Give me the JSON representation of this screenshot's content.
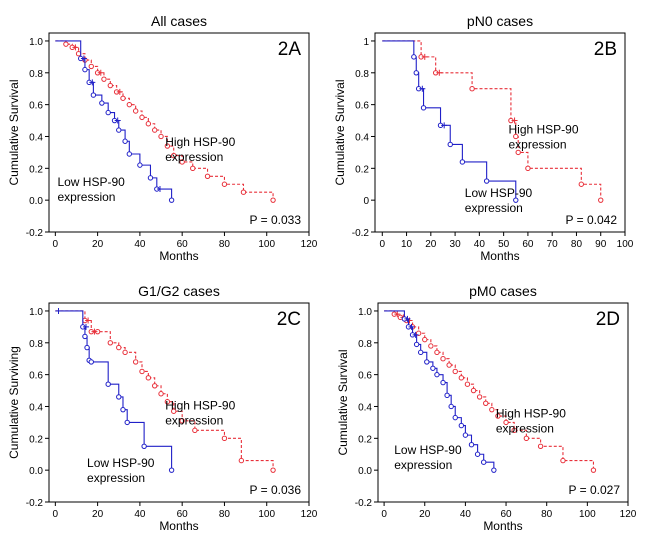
{
  "chart_data": [
    {
      "type": "line",
      "subtype": "kaplan-meier",
      "title": "All cases",
      "panel_label": "2A",
      "xlabel": "Months",
      "ylabel": "Cumulative Survival",
      "xlim": [
        -3,
        120
      ],
      "ylim": [
        -0.2,
        1.05
      ],
      "xticks": [
        0,
        20,
        40,
        60,
        80,
        100,
        120
      ],
      "yticks": [
        -0.2,
        0,
        0.2,
        0.4,
        0.6,
        0.8,
        1.0
      ],
      "xtick_labels": [
        "0",
        "20",
        "40",
        "60",
        "80",
        "100",
        "120"
      ],
      "ytick_labels": [
        "-0.2",
        "0.0",
        "0.2",
        "0.4",
        "0.6",
        "0.8",
        "1.0"
      ],
      "p_value": "P = 0.033",
      "series": [
        {
          "label_lines": [
            "High HSP-90",
            "expression"
          ],
          "label_pos": [
            52,
            0.34
          ],
          "color": "#e8303a",
          "dashed": true,
          "x": [
            0,
            5,
            8,
            11,
            14,
            17,
            20,
            23,
            26,
            29,
            32,
            35,
            38,
            41,
            44,
            47,
            50,
            53,
            56,
            60,
            65,
            72,
            80,
            89,
            103
          ],
          "y": [
            1.0,
            0.98,
            0.96,
            0.92,
            0.88,
            0.84,
            0.8,
            0.76,
            0.72,
            0.68,
            0.64,
            0.6,
            0.56,
            0.52,
            0.48,
            0.44,
            0.4,
            0.34,
            0.28,
            0.24,
            0.2,
            0.15,
            0.1,
            0.05,
            0.0
          ],
          "censored": [
            2,
            6,
            9
          ]
        },
        {
          "label_lines": [
            "Low HSP-90",
            "expression"
          ],
          "label_pos": [
            1,
            0.09
          ],
          "color": "#2020c8",
          "dashed": false,
          "x": [
            0,
            12,
            14,
            16,
            18,
            22,
            25,
            28,
            30,
            33,
            35,
            40,
            45,
            48,
            55
          ],
          "y": [
            1.0,
            0.89,
            0.82,
            0.74,
            0.66,
            0.61,
            0.55,
            0.5,
            0.44,
            0.37,
            0.29,
            0.22,
            0.14,
            0.07,
            0.0
          ],
          "censored": [
            1,
            3,
            7,
            13
          ]
        }
      ]
    },
    {
      "type": "line",
      "subtype": "kaplan-meier",
      "title": "pN0 cases",
      "panel_label": "2B",
      "xlabel": "Months",
      "ylabel": "Cumulative Survival",
      "xlim": [
        -3,
        100
      ],
      "ylim": [
        -0.2,
        1.05
      ],
      "xticks": [
        0,
        10,
        20,
        30,
        40,
        50,
        60,
        70,
        80,
        90,
        100
      ],
      "yticks": [
        -0.2,
        0,
        0.2,
        0.4,
        0.6,
        0.8,
        1.0
      ],
      "xtick_labels": [
        "0",
        "10",
        "20",
        "30",
        "40",
        "50",
        "60",
        "70",
        "80",
        "90",
        "100"
      ],
      "ytick_labels": [
        "-0.2",
        "0",
        "0.2",
        "0.4",
        "0.6",
        "0.8",
        "1"
      ],
      "p_value": "P = 0.042",
      "series": [
        {
          "label_lines": [
            "High HSP-90",
            "expression"
          ],
          "label_pos": [
            52,
            0.42
          ],
          "color": "#e8303a",
          "dashed": true,
          "x": [
            0,
            16,
            22,
            37,
            53,
            55,
            56,
            60,
            82,
            90
          ],
          "y": [
            1.0,
            0.9,
            0.8,
            0.7,
            0.5,
            0.4,
            0.3,
            0.2,
            0.1,
            0.0
          ],
          "censored": [
            1,
            2,
            4
          ]
        },
        {
          "label_lines": [
            "Low HSP-90",
            "expression"
          ],
          "label_pos": [
            34,
            0.02
          ],
          "color": "#2020c8",
          "dashed": false,
          "x": [
            0,
            13,
            14,
            15,
            17,
            24,
            28,
            33,
            43,
            55
          ],
          "y": [
            1.0,
            0.9,
            0.8,
            0.7,
            0.58,
            0.47,
            0.35,
            0.24,
            0.12,
            0.0
          ],
          "censored": [
            3,
            5
          ]
        }
      ]
    },
    {
      "type": "line",
      "subtype": "kaplan-meier",
      "title": "G1/G2 cases",
      "panel_label": "2C",
      "xlabel": "Months",
      "ylabel": "Cumulative Surviving",
      "xlim": [
        -3,
        120
      ],
      "ylim": [
        -0.2,
        1.05
      ],
      "xticks": [
        0,
        20,
        40,
        60,
        80,
        100,
        120
      ],
      "yticks": [
        -0.2,
        0,
        0.2,
        0.4,
        0.6,
        0.8,
        1.0
      ],
      "xtick_labels": [
        "0",
        "20",
        "40",
        "60",
        "80",
        "100",
        "120"
      ],
      "ytick_labels": [
        "-0.2",
        "0.0",
        "0.2",
        "0.4",
        "0.6",
        "0.8",
        "1.0"
      ],
      "p_value": "P = 0.036",
      "series": [
        {
          "label_lines": [
            "High HSP-90",
            "expression"
          ],
          "label_pos": [
            52,
            0.38
          ],
          "color": "#e8303a",
          "dashed": true,
          "x": [
            0,
            14,
            17,
            20,
            26,
            30,
            33,
            38,
            41,
            44,
            47,
            50,
            53,
            56,
            60,
            66,
            80,
            88,
            103
          ],
          "y": [
            1.0,
            0.94,
            0.87,
            0.87,
            0.8,
            0.77,
            0.74,
            0.68,
            0.62,
            0.58,
            0.53,
            0.48,
            0.43,
            0.37,
            0.31,
            0.25,
            0.2,
            0.06,
            0.0
          ],
          "censored": [
            1,
            2
          ]
        },
        {
          "label_lines": [
            "Low HSP-90",
            "expression"
          ],
          "label_pos": [
            15,
            0.02
          ],
          "color": "#2020c8",
          "dashed": false,
          "x": [
            0,
            13,
            14,
            15,
            16,
            17,
            25,
            30,
            32,
            34,
            42,
            55
          ],
          "y": [
            1.0,
            0.9,
            0.84,
            0.77,
            0.69,
            0.68,
            0.54,
            0.46,
            0.38,
            0.3,
            0.15,
            0.0
          ],
          "censored": [
            0,
            1
          ]
        }
      ]
    },
    {
      "type": "line",
      "subtype": "kaplan-meier",
      "title": "pM0 cases",
      "panel_label": "2D",
      "xlabel": "Months",
      "ylabel": "Cumulative Survival",
      "xlim": [
        -3,
        120
      ],
      "ylim": [
        -0.2,
        1.05
      ],
      "xticks": [
        0,
        20,
        40,
        60,
        80,
        100,
        120
      ],
      "yticks": [
        -0.2,
        0,
        0.2,
        0.4,
        0.6,
        0.8,
        1.0
      ],
      "xtick_labels": [
        "0",
        "20",
        "40",
        "60",
        "80",
        "100",
        "120"
      ],
      "ytick_labels": [
        "-0.2",
        "0.0",
        "0.2",
        "0.4",
        "0.6",
        "0.8",
        "1.0"
      ],
      "p_value": "P = 0.027",
      "series": [
        {
          "label_lines": [
            "High HSP-90",
            "expression"
          ],
          "label_pos": [
            55,
            0.33
          ],
          "color": "#e8303a",
          "dashed": true,
          "x": [
            0,
            5,
            8,
            11,
            14,
            17,
            20,
            23,
            26,
            29,
            32,
            35,
            38,
            41,
            44,
            47,
            50,
            53,
            56,
            60,
            64,
            70,
            77,
            88,
            103
          ],
          "y": [
            1.0,
            0.98,
            0.96,
            0.94,
            0.9,
            0.86,
            0.82,
            0.78,
            0.74,
            0.7,
            0.66,
            0.62,
            0.58,
            0.54,
            0.5,
            0.46,
            0.42,
            0.38,
            0.34,
            0.3,
            0.25,
            0.2,
            0.15,
            0.06,
            0.0
          ],
          "censored": [
            1,
            2,
            3
          ]
        },
        {
          "label_lines": [
            "Low HSP-90",
            "expression"
          ],
          "label_pos": [
            5,
            0.1
          ],
          "color": "#2020c8",
          "dashed": false,
          "x": [
            0,
            10,
            12,
            14,
            16,
            18,
            21,
            24,
            26,
            29,
            31,
            33,
            35,
            38,
            40,
            43,
            46,
            49,
            54
          ],
          "y": [
            1.0,
            0.95,
            0.9,
            0.85,
            0.79,
            0.74,
            0.68,
            0.64,
            0.6,
            0.55,
            0.47,
            0.4,
            0.33,
            0.28,
            0.22,
            0.16,
            0.1,
            0.05,
            0.0
          ],
          "censored": [
            1,
            2,
            3
          ]
        }
      ]
    }
  ]
}
